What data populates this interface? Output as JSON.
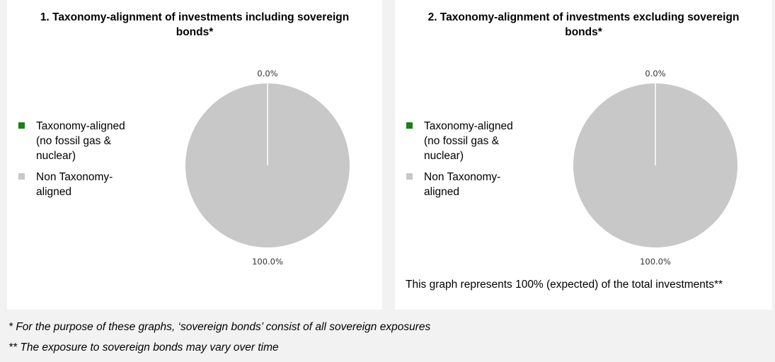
{
  "chart_data": [
    {
      "type": "pie",
      "title": "1. Taxonomy-alignment of investments including sovereign bonds*",
      "categories": [
        "Taxonomy-aligned (no fossil gas & nuclear)",
        "Non Taxonomy-aligned"
      ],
      "values": [
        0.0,
        100.0
      ],
      "colors": [
        "#1a7f1a",
        "#c8c8c8"
      ],
      "data_labels": [
        "0.0%",
        "100.0%"
      ],
      "legend_position": "left"
    },
    {
      "type": "pie",
      "title": "2. Taxonomy-alignment of investments excluding sovereign bonds*",
      "categories": [
        "Taxonomy-aligned (no fossil gas & nuclear)",
        "Non Taxonomy-aligned"
      ],
      "values": [
        0.0,
        100.0
      ],
      "colors": [
        "#1a7f1a",
        "#c8c8c8"
      ],
      "data_labels": [
        "0.0%",
        "100.0%"
      ],
      "legend_position": "left"
    }
  ],
  "legend": {
    "aligned": "Taxonomy-aligned (no fossil gas & nuclear)",
    "non_aligned": "Non Taxonomy-aligned"
  },
  "note": "This graph represents 100% (expected) of the total investments**",
  "footnotes": [
    "* For the purpose of these graphs, ‘sovereign bonds’ consist of all sovereign exposures",
    "** The exposure to sovereign bonds may vary over time"
  ]
}
